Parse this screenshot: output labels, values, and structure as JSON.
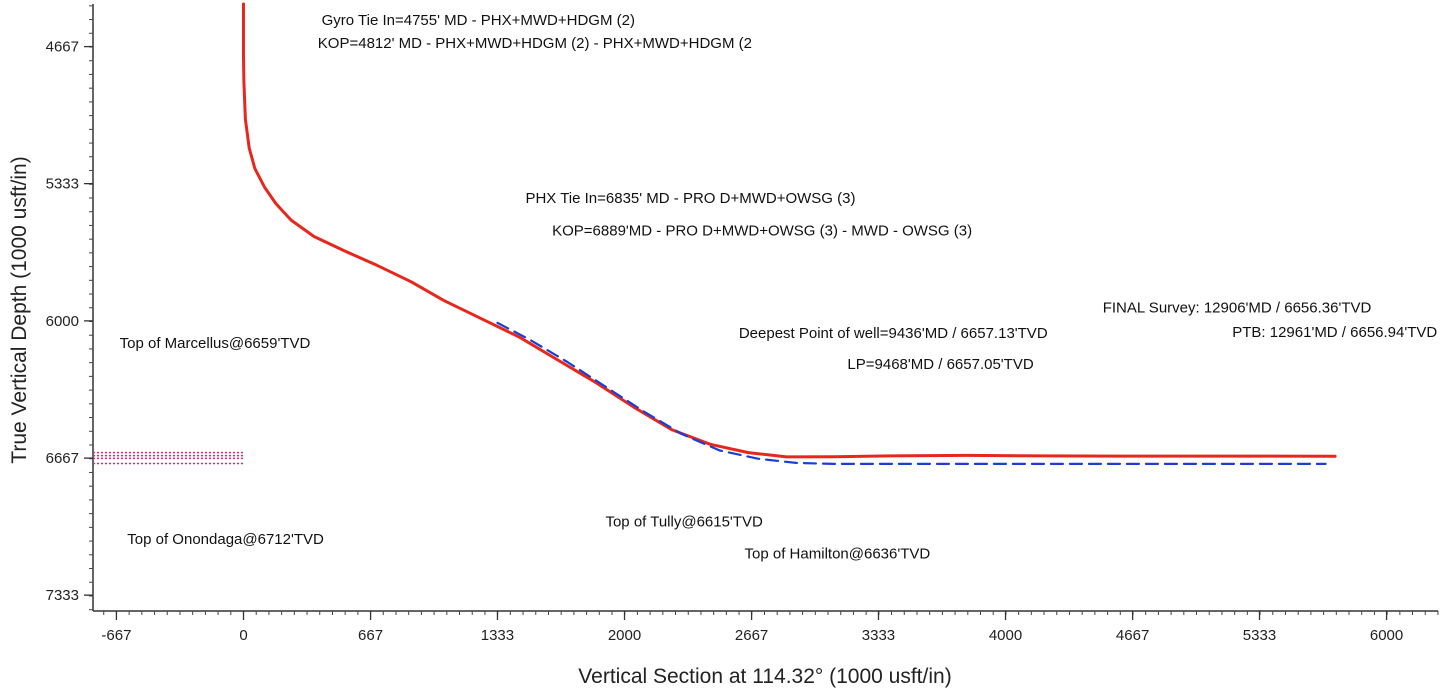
{
  "chart_data": {
    "type": "line",
    "title": "",
    "xlabel": "Vertical Section at 114.32° (1000 usft/in)",
    "ylabel": "True Vertical Depth (1000 usft/in)",
    "xlim": [
      -790,
      6270
    ],
    "ylim": [
      4460,
      7410
    ],
    "y_inverted": true,
    "grid": false,
    "legend": "none",
    "x_ticks": [
      -667,
      0,
      667,
      1333,
      2000,
      2667,
      3333,
      4000,
      4667,
      5333,
      6000
    ],
    "y_ticks": [
      4667,
      5333,
      6000,
      6667,
      7333
    ],
    "series": [
      {
        "style": "solid",
        "color": "#e8271c",
        "x": [
          0,
          0,
          2,
          10,
          30,
          60,
          110,
          170,
          250,
          370,
          530,
          700,
          880,
          1050,
          1250,
          1450,
          1650,
          1850,
          2050,
          2250,
          2450,
          2650,
          2850,
          3100,
          3400,
          3800,
          4200,
          4600,
          5000,
          5400,
          5730
        ],
        "y": [
          4460,
          4720,
          4840,
          5020,
          5160,
          5260,
          5350,
          5430,
          5510,
          5590,
          5660,
          5730,
          5810,
          5900,
          5990,
          6080,
          6190,
          6300,
          6420,
          6530,
          6600,
          6640,
          6661,
          6660,
          6656,
          6654,
          6656,
          6657,
          6657,
          6657,
          6658
        ]
      },
      {
        "style": "dashed",
        "color": "#1a3fd6",
        "x": [
          1333,
          1500,
          1700,
          1900,
          2100,
          2300,
          2500,
          2700,
          2900,
          3100,
          3500,
          4000,
          4500,
          5000,
          5500,
          5680
        ],
        "y": [
          6010,
          6090,
          6200,
          6320,
          6440,
          6550,
          6630,
          6670,
          6690,
          6695,
          6695,
          6695,
          6695,
          6695,
          6695,
          6695
        ]
      }
    ],
    "formation_markers": [
      {
        "y": 6640,
        "color": "#e0287c"
      },
      {
        "y": 6655,
        "color": "#e0287c"
      },
      {
        "y": 6668,
        "color": "#e0287c"
      },
      {
        "y": 6693,
        "color": "#e0287c"
      }
    ],
    "annotations": [
      {
        "text": "Gyro Tie In=4755' MD - PHX+MWD+HDGM (2)",
        "x": 410,
        "y": 4563
      },
      {
        "text": "KOP=4812' MD - PHX+MWD+HDGM (2) - PHX+MWD+HDGM (2",
        "x": 390,
        "y": 4675
      },
      {
        "text": "PHX Tie In=6835' MD -  PRO D+MWD+OWSG (3)",
        "x": 1480,
        "y": 5427
      },
      {
        "text": "KOP=6889'MD - PRO D+MWD+OWSG (3) - MWD - OWSG (3)",
        "x": 1620,
        "y": 5585
      },
      {
        "text": "FINAL Survey: 12906'MD / 6656.36'TVD",
        "x": 4510,
        "y": 5959
      },
      {
        "text": "PTB: 12961'MD / 6656.94'TVD",
        "x": 5190,
        "y": 6079
      },
      {
        "text": "Deepest Point of well=9436'MD / 6657.13'TVD",
        "x": 2600,
        "y": 6084
      },
      {
        "text": "Top of Marcellus@6659'TVD",
        "x": -650,
        "y": 6131
      },
      {
        "text": "LP=9468'MD / 6657.05'TVD",
        "x": 3170,
        "y": 6234
      },
      {
        "text": "Top of Tully@6615'TVD",
        "x": 1900,
        "y": 6999
      },
      {
        "text": "Top of Onondaga@6712'TVD",
        "x": -610,
        "y": 7084
      },
      {
        "text": "Top of Hamilton@6636'TVD",
        "x": 2630,
        "y": 7154
      }
    ]
  }
}
